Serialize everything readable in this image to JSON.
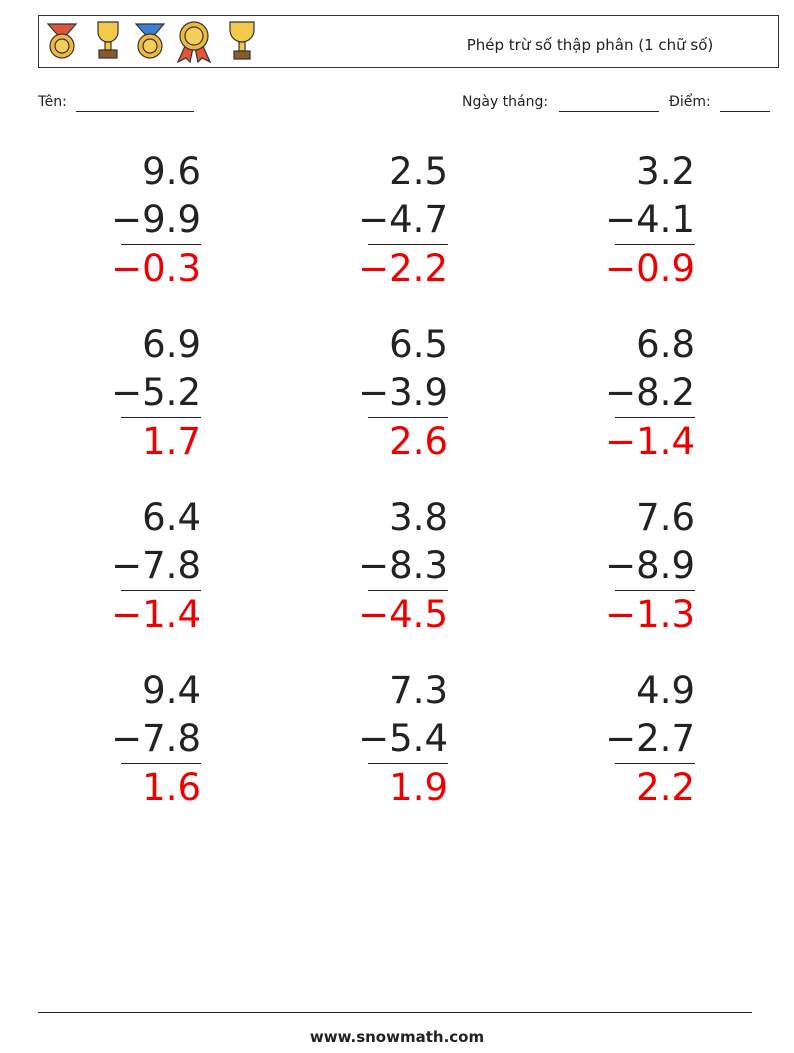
{
  "header": {
    "title": "Phép trừ số thập phân (1 chữ số)"
  },
  "fields": {
    "name": "Tên:",
    "date": "Ngày tháng:",
    "score": "Điểm:"
  },
  "problems": [
    {
      "top": "9.6",
      "bottom": "−9.9",
      "answer": "−0.3"
    },
    {
      "top": "2.5",
      "bottom": "−4.7",
      "answer": "−2.2"
    },
    {
      "top": "3.2",
      "bottom": "−4.1",
      "answer": "−0.9"
    },
    {
      "top": "6.9",
      "bottom": "−5.2",
      "answer": "1.7"
    },
    {
      "top": "6.5",
      "bottom": "−3.9",
      "answer": "2.6"
    },
    {
      "top": "6.8",
      "bottom": "−8.2",
      "answer": "−1.4"
    },
    {
      "top": "6.4",
      "bottom": "−7.8",
      "answer": "−1.4"
    },
    {
      "top": "3.8",
      "bottom": "−8.3",
      "answer": "−4.5"
    },
    {
      "top": "7.6",
      "bottom": "−8.9",
      "answer": "−1.3"
    },
    {
      "top": "9.4",
      "bottom": "−7.8",
      "answer": "1.6"
    },
    {
      "top": "7.3",
      "bottom": "−5.4",
      "answer": "1.9"
    },
    {
      "top": "4.9",
      "bottom": "−2.7",
      "answer": "2.2"
    }
  ],
  "footer": {
    "site": "www.snowmath.com"
  }
}
